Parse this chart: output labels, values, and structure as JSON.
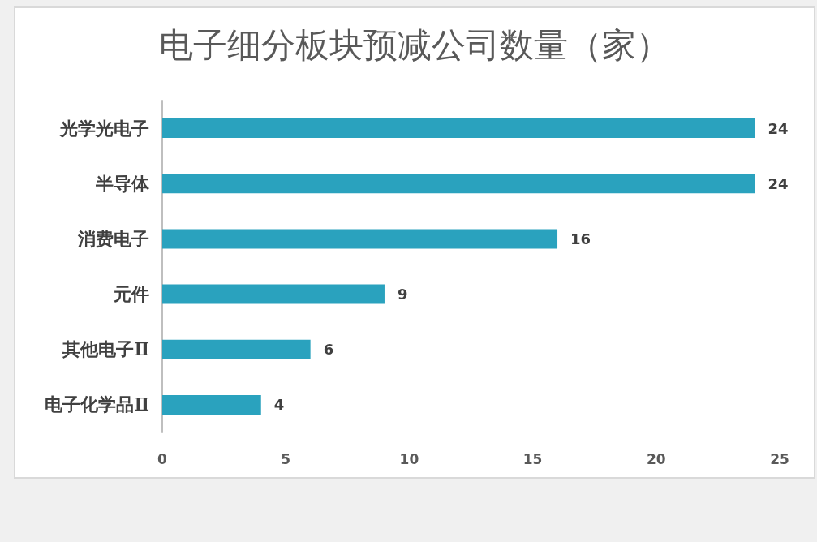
{
  "chart_data": {
    "type": "bar",
    "orientation": "horizontal",
    "title": "电子细分板块预减公司数量（家）",
    "categories": [
      "光学光电子",
      "半导体",
      "消费电子",
      "元件",
      "其他电子Ⅱ",
      "电子化学品Ⅱ"
    ],
    "values": [
      24,
      24,
      16,
      9,
      6,
      4
    ],
    "color": "#2aa2be",
    "xlim": [
      0,
      25
    ],
    "xticks": [
      0,
      5,
      10,
      15,
      20,
      25
    ],
    "grid": false,
    "data_labels": true
  }
}
